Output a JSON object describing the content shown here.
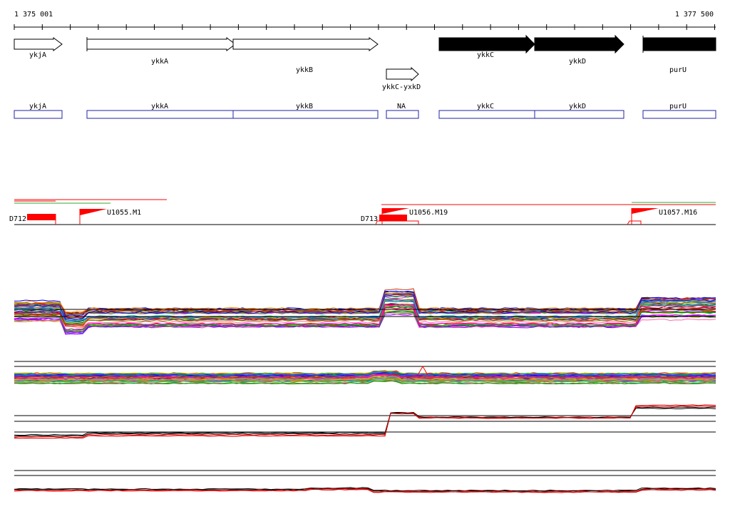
{
  "ruler": {
    "start_label": "1 375 001",
    "end_label": "1 377 500"
  },
  "genes": [
    {
      "name": "ykjA",
      "strand": "+",
      "filled": false
    },
    {
      "name": "ykkA",
      "strand": "+",
      "filled": false
    },
    {
      "name": "ykkB",
      "strand": "+",
      "filled": false
    },
    {
      "name": "ykkC-yxkD",
      "strand": "+",
      "filled": false
    },
    {
      "name": "ykkC",
      "strand": "+",
      "filled": true
    },
    {
      "name": "ykkD",
      "strand": "+",
      "filled": true
    },
    {
      "name": "purU",
      "strand": "+",
      "filled": true
    }
  ],
  "annotation_boxes": [
    "ykjA",
    "ykkA",
    "ykkB",
    "NA",
    "ykkC",
    "ykkD",
    "purU"
  ],
  "features": {
    "downshifts": [
      "D712",
      "D713"
    ],
    "upshifts": [
      "U1055.M1",
      "U1056.M19",
      "U1057.M16"
    ]
  },
  "colors": {
    "gene_outline": "#000000",
    "gene_filled": "#000000",
    "annotation_box": "#2222aa",
    "feature": "#ff0000",
    "track_line": "#000000",
    "green_line": "#33aa33"
  }
}
